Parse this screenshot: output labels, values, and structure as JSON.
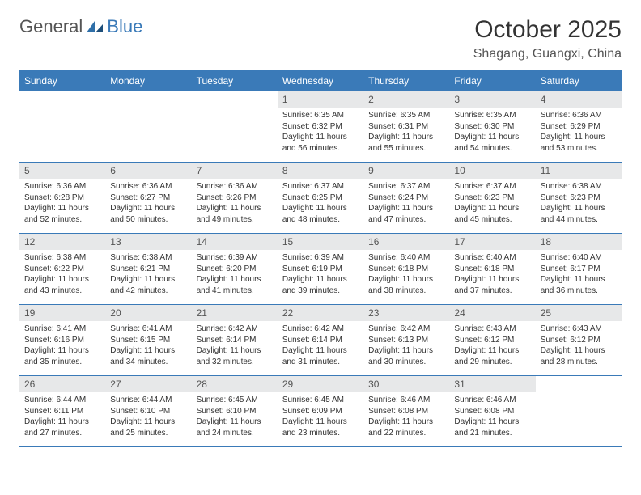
{
  "brand": {
    "name_gray": "General",
    "name_blue": "Blue"
  },
  "title": "October 2025",
  "location": "Shagang, Guangxi, China",
  "colors": {
    "header_bg": "#3a7ab8",
    "header_text": "#ffffff",
    "daynum_bg": "#e7e8e9",
    "border": "#3a7ab8",
    "text": "#333333",
    "logo_gray": "#555555",
    "logo_blue": "#3a7ab8",
    "background": "#ffffff"
  },
  "typography": {
    "title_fontsize": 30,
    "location_fontsize": 16,
    "dayheader_fontsize": 12,
    "daynum_fontsize": 12,
    "dayinfo_fontsize": 10,
    "logo_fontsize": 22
  },
  "day_headers": [
    "Sunday",
    "Monday",
    "Tuesday",
    "Wednesday",
    "Thursday",
    "Friday",
    "Saturday"
  ],
  "weeks": [
    [
      null,
      null,
      null,
      {
        "n": "1",
        "sunrise": "Sunrise: 6:35 AM",
        "sunset": "Sunset: 6:32 PM",
        "daylight": "Daylight: 11 hours and 56 minutes."
      },
      {
        "n": "2",
        "sunrise": "Sunrise: 6:35 AM",
        "sunset": "Sunset: 6:31 PM",
        "daylight": "Daylight: 11 hours and 55 minutes."
      },
      {
        "n": "3",
        "sunrise": "Sunrise: 6:35 AM",
        "sunset": "Sunset: 6:30 PM",
        "daylight": "Daylight: 11 hours and 54 minutes."
      },
      {
        "n": "4",
        "sunrise": "Sunrise: 6:36 AM",
        "sunset": "Sunset: 6:29 PM",
        "daylight": "Daylight: 11 hours and 53 minutes."
      }
    ],
    [
      {
        "n": "5",
        "sunrise": "Sunrise: 6:36 AM",
        "sunset": "Sunset: 6:28 PM",
        "daylight": "Daylight: 11 hours and 52 minutes."
      },
      {
        "n": "6",
        "sunrise": "Sunrise: 6:36 AM",
        "sunset": "Sunset: 6:27 PM",
        "daylight": "Daylight: 11 hours and 50 minutes."
      },
      {
        "n": "7",
        "sunrise": "Sunrise: 6:36 AM",
        "sunset": "Sunset: 6:26 PM",
        "daylight": "Daylight: 11 hours and 49 minutes."
      },
      {
        "n": "8",
        "sunrise": "Sunrise: 6:37 AM",
        "sunset": "Sunset: 6:25 PM",
        "daylight": "Daylight: 11 hours and 48 minutes."
      },
      {
        "n": "9",
        "sunrise": "Sunrise: 6:37 AM",
        "sunset": "Sunset: 6:24 PM",
        "daylight": "Daylight: 11 hours and 47 minutes."
      },
      {
        "n": "10",
        "sunrise": "Sunrise: 6:37 AM",
        "sunset": "Sunset: 6:23 PM",
        "daylight": "Daylight: 11 hours and 45 minutes."
      },
      {
        "n": "11",
        "sunrise": "Sunrise: 6:38 AM",
        "sunset": "Sunset: 6:23 PM",
        "daylight": "Daylight: 11 hours and 44 minutes."
      }
    ],
    [
      {
        "n": "12",
        "sunrise": "Sunrise: 6:38 AM",
        "sunset": "Sunset: 6:22 PM",
        "daylight": "Daylight: 11 hours and 43 minutes."
      },
      {
        "n": "13",
        "sunrise": "Sunrise: 6:38 AM",
        "sunset": "Sunset: 6:21 PM",
        "daylight": "Daylight: 11 hours and 42 minutes."
      },
      {
        "n": "14",
        "sunrise": "Sunrise: 6:39 AM",
        "sunset": "Sunset: 6:20 PM",
        "daylight": "Daylight: 11 hours and 41 minutes."
      },
      {
        "n": "15",
        "sunrise": "Sunrise: 6:39 AM",
        "sunset": "Sunset: 6:19 PM",
        "daylight": "Daylight: 11 hours and 39 minutes."
      },
      {
        "n": "16",
        "sunrise": "Sunrise: 6:40 AM",
        "sunset": "Sunset: 6:18 PM",
        "daylight": "Daylight: 11 hours and 38 minutes."
      },
      {
        "n": "17",
        "sunrise": "Sunrise: 6:40 AM",
        "sunset": "Sunset: 6:18 PM",
        "daylight": "Daylight: 11 hours and 37 minutes."
      },
      {
        "n": "18",
        "sunrise": "Sunrise: 6:40 AM",
        "sunset": "Sunset: 6:17 PM",
        "daylight": "Daylight: 11 hours and 36 minutes."
      }
    ],
    [
      {
        "n": "19",
        "sunrise": "Sunrise: 6:41 AM",
        "sunset": "Sunset: 6:16 PM",
        "daylight": "Daylight: 11 hours and 35 minutes."
      },
      {
        "n": "20",
        "sunrise": "Sunrise: 6:41 AM",
        "sunset": "Sunset: 6:15 PM",
        "daylight": "Daylight: 11 hours and 34 minutes."
      },
      {
        "n": "21",
        "sunrise": "Sunrise: 6:42 AM",
        "sunset": "Sunset: 6:14 PM",
        "daylight": "Daylight: 11 hours and 32 minutes."
      },
      {
        "n": "22",
        "sunrise": "Sunrise: 6:42 AM",
        "sunset": "Sunset: 6:14 PM",
        "daylight": "Daylight: 11 hours and 31 minutes."
      },
      {
        "n": "23",
        "sunrise": "Sunrise: 6:42 AM",
        "sunset": "Sunset: 6:13 PM",
        "daylight": "Daylight: 11 hours and 30 minutes."
      },
      {
        "n": "24",
        "sunrise": "Sunrise: 6:43 AM",
        "sunset": "Sunset: 6:12 PM",
        "daylight": "Daylight: 11 hours and 29 minutes."
      },
      {
        "n": "25",
        "sunrise": "Sunrise: 6:43 AM",
        "sunset": "Sunset: 6:12 PM",
        "daylight": "Daylight: 11 hours and 28 minutes."
      }
    ],
    [
      {
        "n": "26",
        "sunrise": "Sunrise: 6:44 AM",
        "sunset": "Sunset: 6:11 PM",
        "daylight": "Daylight: 11 hours and 27 minutes."
      },
      {
        "n": "27",
        "sunrise": "Sunrise: 6:44 AM",
        "sunset": "Sunset: 6:10 PM",
        "daylight": "Daylight: 11 hours and 25 minutes."
      },
      {
        "n": "28",
        "sunrise": "Sunrise: 6:45 AM",
        "sunset": "Sunset: 6:10 PM",
        "daylight": "Daylight: 11 hours and 24 minutes."
      },
      {
        "n": "29",
        "sunrise": "Sunrise: 6:45 AM",
        "sunset": "Sunset: 6:09 PM",
        "daylight": "Daylight: 11 hours and 23 minutes."
      },
      {
        "n": "30",
        "sunrise": "Sunrise: 6:46 AM",
        "sunset": "Sunset: 6:08 PM",
        "daylight": "Daylight: 11 hours and 22 minutes."
      },
      {
        "n": "31",
        "sunrise": "Sunrise: 6:46 AM",
        "sunset": "Sunset: 6:08 PM",
        "daylight": "Daylight: 11 hours and 21 minutes."
      },
      null
    ]
  ]
}
